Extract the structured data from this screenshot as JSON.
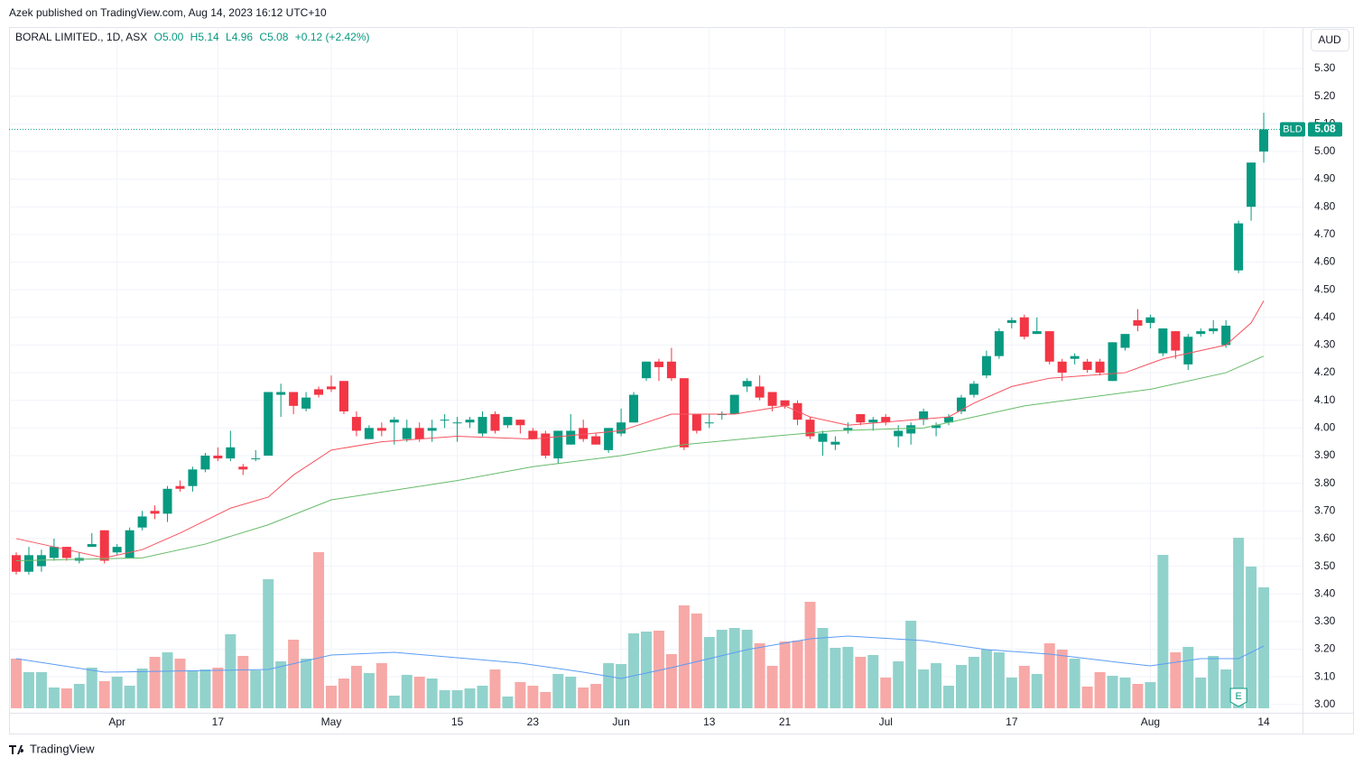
{
  "published": "Azek published on TradingView.com, Aug 14, 2023 16:12 UTC+10",
  "footer": "TradingView",
  "chart_data": {
    "type": "candlestick",
    "symbol": "BORAL LIMITED., 1D, ASX",
    "ohlc_labels": [
      "O5.00",
      "H5.14",
      "L4.96",
      "C5.08"
    ],
    "change": "+0.12 (+2.42%)",
    "currency": "AUD",
    "last_price": {
      "symbol": "BLD",
      "price": 5.08,
      "color": "#089981"
    },
    "earnings_marker": "E",
    "x": [
      "Mar 22",
      "Mar 23",
      "Mar 24",
      "Mar 27",
      "Mar 28",
      "Mar 29",
      "Mar 30",
      "Mar 31",
      "Apr 3",
      "Apr 4",
      "Apr 5",
      "Apr 6",
      "Apr 11",
      "Apr 12",
      "Apr 13",
      "Apr 14",
      "Apr 17",
      "Apr 18",
      "Apr 19",
      "Apr 20",
      "Apr 21",
      "Apr 24",
      "Apr 26",
      "Apr 27",
      "Apr 28",
      "May 1",
      "May 2",
      "May 3",
      "May 4",
      "May 5",
      "May 8",
      "May 9",
      "May 10",
      "May 11",
      "May 12",
      "May 15",
      "May 16",
      "May 17",
      "May 18",
      "May 19",
      "May 22",
      "May 23",
      "May 24",
      "May 25",
      "May 26",
      "May 29",
      "May 30",
      "May 31",
      "Jun 1",
      "Jun 2",
      "Jun 5",
      "Jun 6",
      "Jun 7",
      "Jun 8",
      "Jun 9",
      "Jun 13",
      "Jun 14",
      "Jun 15",
      "Jun 16",
      "Jun 19",
      "Jun 20",
      "Jun 21",
      "Jun 22",
      "Jun 23",
      "Jun 26",
      "Jun 27",
      "Jun 28",
      "Jun 29",
      "Jun 30",
      "Jul 3",
      "Jul 4",
      "Jul 5",
      "Jul 6",
      "Jul 7",
      "Jul 10",
      "Jul 11",
      "Jul 12",
      "Jul 13",
      "Jul 14",
      "Jul 17",
      "Jul 18",
      "Jul 19",
      "Jul 20",
      "Jul 21",
      "Jul 24",
      "Jul 25",
      "Jul 26",
      "Jul 27",
      "Jul 28",
      "Jul 31",
      "Aug 1",
      "Aug 2",
      "Aug 3",
      "Aug 4",
      "Aug 7",
      "Aug 8",
      "Aug 9",
      "Aug 10",
      "Aug 11",
      "Aug 14"
    ],
    "candles": {
      "open": [
        3.54,
        3.48,
        3.5,
        3.53,
        3.57,
        3.52,
        3.57,
        3.63,
        3.55,
        3.53,
        3.64,
        3.7,
        3.69,
        3.79,
        3.79,
        3.85,
        3.9,
        3.89,
        3.86,
        3.89,
        3.9,
        4.12,
        4.13,
        4.07,
        4.14,
        4.15,
        4.17,
        4.04,
        3.96,
        4.0,
        4.02,
        3.96,
        4.0,
        3.99,
        4.03,
        4.02,
        4.02,
        3.98,
        4.05,
        4.01,
        4.03,
        3.99,
        3.98,
        3.89,
        3.94,
        4.0,
        3.97,
        3.92,
        3.98,
        4.02,
        4.18,
        4.24,
        4.24,
        4.18,
        4.05,
        4.02,
        4.05,
        4.05,
        4.15,
        4.15,
        4.13,
        4.1,
        4.09,
        4.03,
        3.95,
        3.94,
        3.99,
        4.05,
        4.02,
        4.04,
        3.97,
        3.98,
        4.03,
        4.0,
        4.02,
        4.06,
        4.12,
        4.19,
        4.26,
        4.38,
        4.4,
        4.34,
        4.35,
        4.24,
        4.25,
        4.24,
        4.24,
        4.17,
        4.29,
        4.39,
        4.38,
        4.27,
        4.35,
        4.23,
        4.34,
        4.35,
        4.3,
        4.57,
        4.8,
        5.0
      ],
      "high": [
        3.55,
        3.57,
        3.56,
        3.6,
        3.57,
        3.55,
        3.62,
        3.63,
        3.58,
        3.64,
        3.7,
        3.72,
        3.79,
        3.81,
        3.86,
        3.91,
        3.93,
        3.99,
        3.87,
        3.92,
        4.13,
        4.16,
        4.13,
        4.13,
        4.15,
        4.19,
        4.17,
        4.06,
        4.01,
        4.02,
        4.04,
        4.03,
        4.02,
        4.03,
        4.05,
        4.04,
        4.04,
        4.06,
        4.06,
        4.04,
        4.03,
        4.0,
        3.99,
        3.99,
        4.05,
        4.03,
        3.98,
        4.0,
        4.07,
        4.13,
        4.24,
        4.25,
        4.29,
        4.18,
        4.05,
        4.05,
        4.06,
        4.12,
        4.18,
        4.19,
        4.13,
        4.1,
        4.1,
        4.04,
        3.99,
        3.97,
        4.02,
        4.05,
        4.04,
        4.05,
        4.01,
        4.02,
        4.07,
        4.02,
        4.05,
        4.12,
        4.17,
        4.28,
        4.36,
        4.4,
        4.41,
        4.4,
        4.35,
        4.25,
        4.27,
        4.25,
        4.25,
        4.31,
        4.34,
        4.43,
        4.41,
        4.36,
        4.35,
        4.34,
        4.36,
        4.39,
        4.39,
        4.75,
        4.96,
        5.14
      ],
      "low": [
        3.47,
        3.47,
        3.48,
        3.52,
        3.52,
        3.51,
        3.57,
        3.51,
        3.54,
        3.53,
        3.63,
        3.67,
        3.66,
        3.77,
        3.77,
        3.84,
        3.88,
        3.88,
        3.83,
        3.88,
        3.9,
        4.04,
        4.05,
        4.06,
        4.11,
        4.13,
        4.05,
        3.97,
        3.96,
        3.97,
        3.94,
        3.95,
        3.95,
        3.95,
        4.0,
        3.95,
        4.0,
        3.97,
        3.98,
        4.0,
        3.98,
        3.96,
        3.89,
        3.87,
        3.94,
        3.95,
        3.94,
        3.91,
        3.97,
        4.02,
        4.17,
        4.17,
        4.17,
        3.92,
        3.98,
        4.0,
        4.03,
        4.05,
        4.13,
        4.1,
        4.06,
        4.07,
        4.01,
        3.96,
        3.9,
        3.92,
        3.98,
        4.01,
        3.99,
        4.01,
        3.93,
        3.94,
        4.01,
        3.97,
        4.01,
        4.05,
        4.11,
        4.18,
        4.25,
        4.36,
        4.32,
        4.34,
        4.23,
        4.17,
        4.23,
        4.2,
        4.19,
        4.17,
        4.28,
        4.35,
        4.36,
        4.26,
        4.25,
        4.21,
        4.33,
        4.34,
        4.29,
        4.56,
        4.75,
        4.96
      ],
      "close": [
        3.48,
        3.54,
        3.54,
        3.57,
        3.53,
        3.53,
        3.58,
        3.52,
        3.57,
        3.63,
        3.68,
        3.69,
        3.78,
        3.78,
        3.85,
        3.9,
        3.89,
        3.93,
        3.85,
        3.89,
        4.13,
        4.13,
        4.08,
        4.11,
        4.12,
        4.14,
        4.06,
        3.99,
        4.0,
        3.99,
        4.03,
        4.0,
        3.96,
        4.0,
        4.03,
        4.02,
        4.03,
        4.04,
        3.99,
        4.04,
        4.01,
        3.96,
        3.9,
        3.99,
        3.99,
        3.96,
        3.94,
        4.0,
        4.02,
        4.12,
        4.24,
        4.22,
        4.18,
        3.93,
        3.99,
        4.02,
        4.05,
        4.12,
        4.17,
        4.11,
        4.08,
        4.08,
        4.03,
        3.97,
        3.98,
        3.95,
        4.0,
        4.02,
        4.03,
        4.02,
        3.99,
        4.01,
        4.06,
        4.01,
        4.04,
        4.11,
        4.16,
        4.26,
        4.35,
        4.39,
        4.33,
        4.35,
        4.24,
        4.2,
        4.26,
        4.21,
        4.2,
        4.31,
        4.34,
        4.37,
        4.4,
        4.36,
        4.28,
        4.33,
        4.35,
        4.36,
        4.37,
        4.74,
        4.96,
        5.08
      ],
      "volume": [
        55,
        40,
        40,
        23,
        22,
        27,
        45,
        30,
        35,
        25,
        44,
        57,
        62,
        55,
        42,
        43,
        45,
        82,
        58,
        42,
        143,
        52,
        76,
        55,
        173,
        25,
        33,
        47,
        39,
        50,
        14,
        37,
        35,
        33,
        20,
        20,
        22,
        25,
        43,
        13,
        29,
        25,
        18,
        38,
        35,
        23,
        27,
        50,
        49,
        83,
        85,
        86,
        60,
        114,
        105,
        79,
        87,
        89,
        87,
        72,
        47,
        74,
        75,
        118,
        89,
        67,
        68,
        57,
        59,
        34,
        52,
        97,
        43,
        50,
        25,
        48,
        57,
        65,
        62,
        34,
        47,
        38,
        72,
        65,
        55,
        24,
        40,
        36,
        34,
        27,
        29,
        170,
        62,
        68,
        34,
        58,
        43,
        189,
        157,
        134
      ],
      "up_color": "#089981",
      "down_color": "#f23645",
      "volume_up_color": "#92d2cc",
      "volume_down_color": "#f7a9a7"
    },
    "lines": [
      {
        "x": [
          "Mar 22",
          "Mar 28",
          "Mar 31",
          "Apr 5",
          "Apr 12",
          "Apr 18",
          "Apr 21",
          "Apr 26",
          "May 1",
          "May 5",
          "May 15",
          "May 23",
          "Jun 1",
          "Jun 7",
          "Jun 15",
          "Jun 21",
          "Jun 23",
          "Jun 28",
          "Jul 10",
          "Jul 12",
          "Jul 17",
          "Jul 20",
          "Jul 28",
          "Aug 2",
          "Aug 9",
          "Aug 11",
          "Aug 14"
        ],
        "values": [
          3.6,
          3.56,
          3.53,
          3.56,
          3.62,
          3.71,
          3.75,
          3.83,
          3.92,
          3.95,
          3.97,
          3.96,
          3.99,
          4.05,
          4.05,
          4.08,
          4.04,
          4.01,
          4.04,
          4.09,
          4.15,
          4.18,
          4.2,
          4.25,
          4.3,
          4.38,
          4.46
        ],
        "color": "#f7525f",
        "pane": "price"
      },
      {
        "x": [
          "Mar 22",
          "Apr 5",
          "Apr 14",
          "Apr 21",
          "May 1",
          "May 15",
          "May 23",
          "Jun 1",
          "Jun 8",
          "Jun 20",
          "Jun 27",
          "Jul 6",
          "Jul 18",
          "Aug 1",
          "Aug 9",
          "Aug 14"
        ],
        "values": [
          3.52,
          3.53,
          3.58,
          3.65,
          3.74,
          3.81,
          3.86,
          3.9,
          3.94,
          3.97,
          3.99,
          4.0,
          4.08,
          4.14,
          4.2,
          4.26
        ],
        "color": "#66bb6a",
        "pane": "price"
      },
      {
        "x": [
          "Mar 22",
          "Mar 31",
          "Apr 21",
          "May 1",
          "May 8",
          "May 22",
          "May 29",
          "Jun 1",
          "Jun 7",
          "Jun 16",
          "Jun 23",
          "Jun 28",
          "Jul 6",
          "Jul 13",
          "Jul 20",
          "Jul 28",
          "Aug 1",
          "Aug 7",
          "Aug 10",
          "Aug 14"
        ],
        "values": [
          55,
          40,
          43,
          59,
          62,
          50,
          40,
          33,
          45,
          65,
          77,
          80,
          75,
          65,
          60,
          50,
          47,
          55,
          55,
          69
        ],
        "color": "#5b9cf6",
        "pane": "volume"
      }
    ],
    "ylim": [
      2.97,
      5.45
    ],
    "volume_lim": [
      0,
      200
    ],
    "yticks": [
      {
        "value": 3.0,
        "label": "3.00"
      },
      {
        "value": 3.1,
        "label": "3.10"
      },
      {
        "value": 3.2,
        "label": "3.20"
      },
      {
        "value": 3.3,
        "label": "3.30"
      },
      {
        "value": 3.4,
        "label": "3.40"
      },
      {
        "value": 3.5,
        "label": "3.50"
      },
      {
        "value": 3.6,
        "label": "3.60"
      },
      {
        "value": 3.7,
        "label": "3.70"
      },
      {
        "value": 3.8,
        "label": "3.80"
      },
      {
        "value": 3.9,
        "label": "3.90"
      },
      {
        "value": 4.0,
        "label": "4.00"
      },
      {
        "value": 4.1,
        "label": "4.10"
      },
      {
        "value": 4.2,
        "label": "4.20"
      },
      {
        "value": 4.3,
        "label": "4.30"
      },
      {
        "value": 4.4,
        "label": "4.40"
      },
      {
        "value": 4.5,
        "label": "4.50"
      },
      {
        "value": 4.6,
        "label": "4.60"
      },
      {
        "value": 4.7,
        "label": "4.70"
      },
      {
        "value": 4.8,
        "label": "4.80"
      },
      {
        "value": 4.9,
        "label": "4.90"
      },
      {
        "value": 5.0,
        "label": "5.00"
      },
      {
        "value": 5.1,
        "label": "5.10"
      },
      {
        "value": 5.2,
        "label": "5.20"
      },
      {
        "value": 5.3,
        "label": "5.30"
      }
    ],
    "xticks": [
      {
        "value": "Apr 3",
        "label": "Apr"
      },
      {
        "value": "Apr 17",
        "label": "17"
      },
      {
        "value": "May 1",
        "label": "May"
      },
      {
        "value": "May 15",
        "label": "15"
      },
      {
        "value": "May 23",
        "label": "23"
      },
      {
        "value": "Jun 1",
        "label": "Jun"
      },
      {
        "value": "Jun 13",
        "label": "13"
      },
      {
        "value": "Jun 21",
        "label": "21"
      },
      {
        "value": "Jul 3",
        "label": "Jul"
      },
      {
        "value": "Jul 17",
        "label": "17"
      },
      {
        "value": "Aug 1",
        "label": "Aug"
      },
      {
        "value": "Aug 14",
        "label": "14"
      }
    ],
    "grid": true
  }
}
